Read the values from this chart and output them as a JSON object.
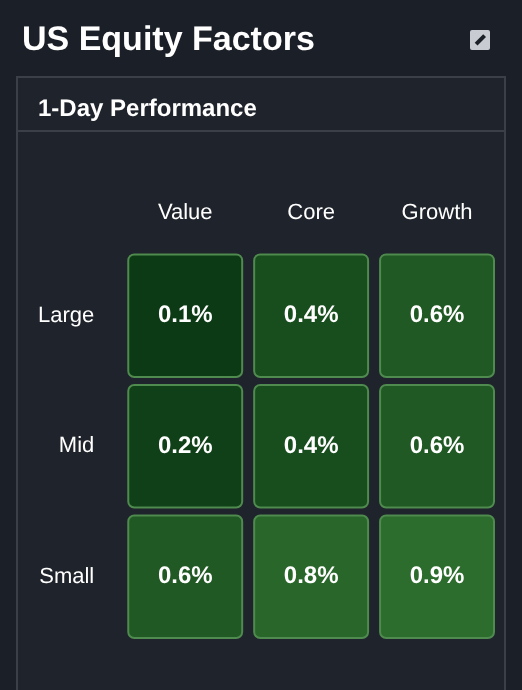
{
  "chart_data": {
    "type": "heatmap",
    "title": "US Equity Factors",
    "subtitle": "1-Day Performance",
    "categories": [
      "Value",
      "Core",
      "Growth"
    ],
    "y_categories": [
      "Large",
      "Mid",
      "Small"
    ],
    "cells": [
      [
        0.1,
        0.4,
        0.6
      ],
      [
        0.2,
        0.4,
        0.6
      ],
      [
        0.6,
        0.8,
        0.9
      ]
    ],
    "cell_labels": [
      [
        "0.1%",
        "0.4%",
        "0.6%"
      ],
      [
        "0.2%",
        "0.4%",
        "0.6%"
      ],
      [
        "0.6%",
        "0.8%",
        "0.9%"
      ]
    ]
  }
}
